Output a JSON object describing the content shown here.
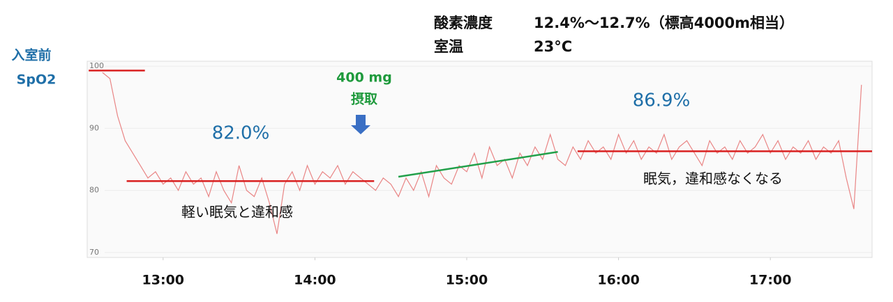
{
  "chart_data": {
    "type": "line",
    "header": [
      {
        "label": "酸素濃度",
        "value": "12.4%～12.7%（標高4000m相当）"
      },
      {
        "label": "室温",
        "value": "23°C"
      }
    ],
    "y_label": [
      "入室前",
      "SpO2"
    ],
    "xlim": [
      12.5,
      17.67
    ],
    "ylim": [
      69.2,
      100.8
    ],
    "xticks": [
      {
        "value": 13,
        "label": "13:00"
      },
      {
        "value": 14,
        "label": "14:00"
      },
      {
        "value": 15,
        "label": "15:00"
      },
      {
        "value": 16,
        "label": "16:00"
      },
      {
        "value": 17,
        "label": "17:00"
      }
    ],
    "yticks": [
      70,
      80,
      90,
      100
    ],
    "grid": true,
    "series": [
      {
        "color": "#e98585",
        "x": [
          12.6,
          12.65,
          12.7,
          12.75,
          12.8,
          12.85,
          12.9,
          12.95,
          13,
          13.05,
          13.1,
          13.15,
          13.2,
          13.25,
          13.3,
          13.35,
          13.4,
          13.45,
          13.5,
          13.55,
          13.6,
          13.65,
          13.7,
          13.75,
          13.8,
          13.85,
          13.9,
          13.95,
          14,
          14.05,
          14.1,
          14.15,
          14.2,
          14.25,
          14.3,
          14.35,
          14.4,
          14.45,
          14.5,
          14.55,
          14.6,
          14.65,
          14.7,
          14.75,
          14.8,
          14.85,
          14.9,
          14.95,
          15,
          15.05,
          15.1,
          15.15,
          15.2,
          15.25,
          15.3,
          15.35,
          15.4,
          15.45,
          15.5,
          15.55,
          15.6,
          15.65,
          15.7,
          15.75,
          15.8,
          15.85,
          15.9,
          15.95,
          16,
          16.05,
          16.1,
          16.15,
          16.2,
          16.25,
          16.3,
          16.35,
          16.4,
          16.45,
          16.5,
          16.55,
          16.6,
          16.65,
          16.7,
          16.75,
          16.8,
          16.85,
          16.9,
          16.95,
          17,
          17.05,
          17.1,
          17.15,
          17.2,
          17.25,
          17.3,
          17.35,
          17.4,
          17.45,
          17.5,
          17.55,
          17.6
        ],
        "values": [
          99,
          98,
          92,
          88,
          86,
          84,
          82,
          83,
          81,
          82,
          80,
          83,
          81,
          82,
          79,
          83,
          80,
          78,
          84,
          80,
          79,
          82,
          78,
          73,
          81,
          83,
          80,
          84,
          81,
          83,
          82,
          84,
          81,
          83,
          82,
          81,
          80,
          82,
          81,
          79,
          82,
          80,
          83,
          79,
          84,
          82,
          81,
          84,
          83,
          86,
          82,
          87,
          84,
          85,
          82,
          86,
          84,
          87,
          85,
          89,
          85,
          84,
          87,
          85,
          88,
          86,
          87,
          85,
          89,
          86,
          88,
          85,
          87,
          86,
          89,
          85,
          87,
          88,
          86,
          84,
          88,
          86,
          87,
          85,
          88,
          86,
          87,
          89,
          86,
          88,
          85,
          87,
          86,
          88,
          85,
          87,
          86,
          88,
          82,
          77,
          97
        ]
      }
    ],
    "reference_lines": [
      {
        "x": [
          12.51,
          12.88
        ],
        "y": 99.3,
        "color": "#d92020"
      },
      {
        "x": [
          12.76,
          14.39
        ],
        "y": 81.5,
        "color": "#d92020"
      },
      {
        "x": [
          14.55,
          15.6
        ],
        "y": [
          82.2,
          86.2
        ],
        "color": "#22a04a"
      },
      {
        "x": [
          15.73,
          17.67
        ],
        "y": 86.3,
        "color": "#d92020"
      }
    ],
    "annotations": [
      "82.0%",
      "400 mg",
      "摂取",
      "86.9%",
      "軽い眠気と違和感",
      "眠気，違和感なくなる"
    ]
  }
}
